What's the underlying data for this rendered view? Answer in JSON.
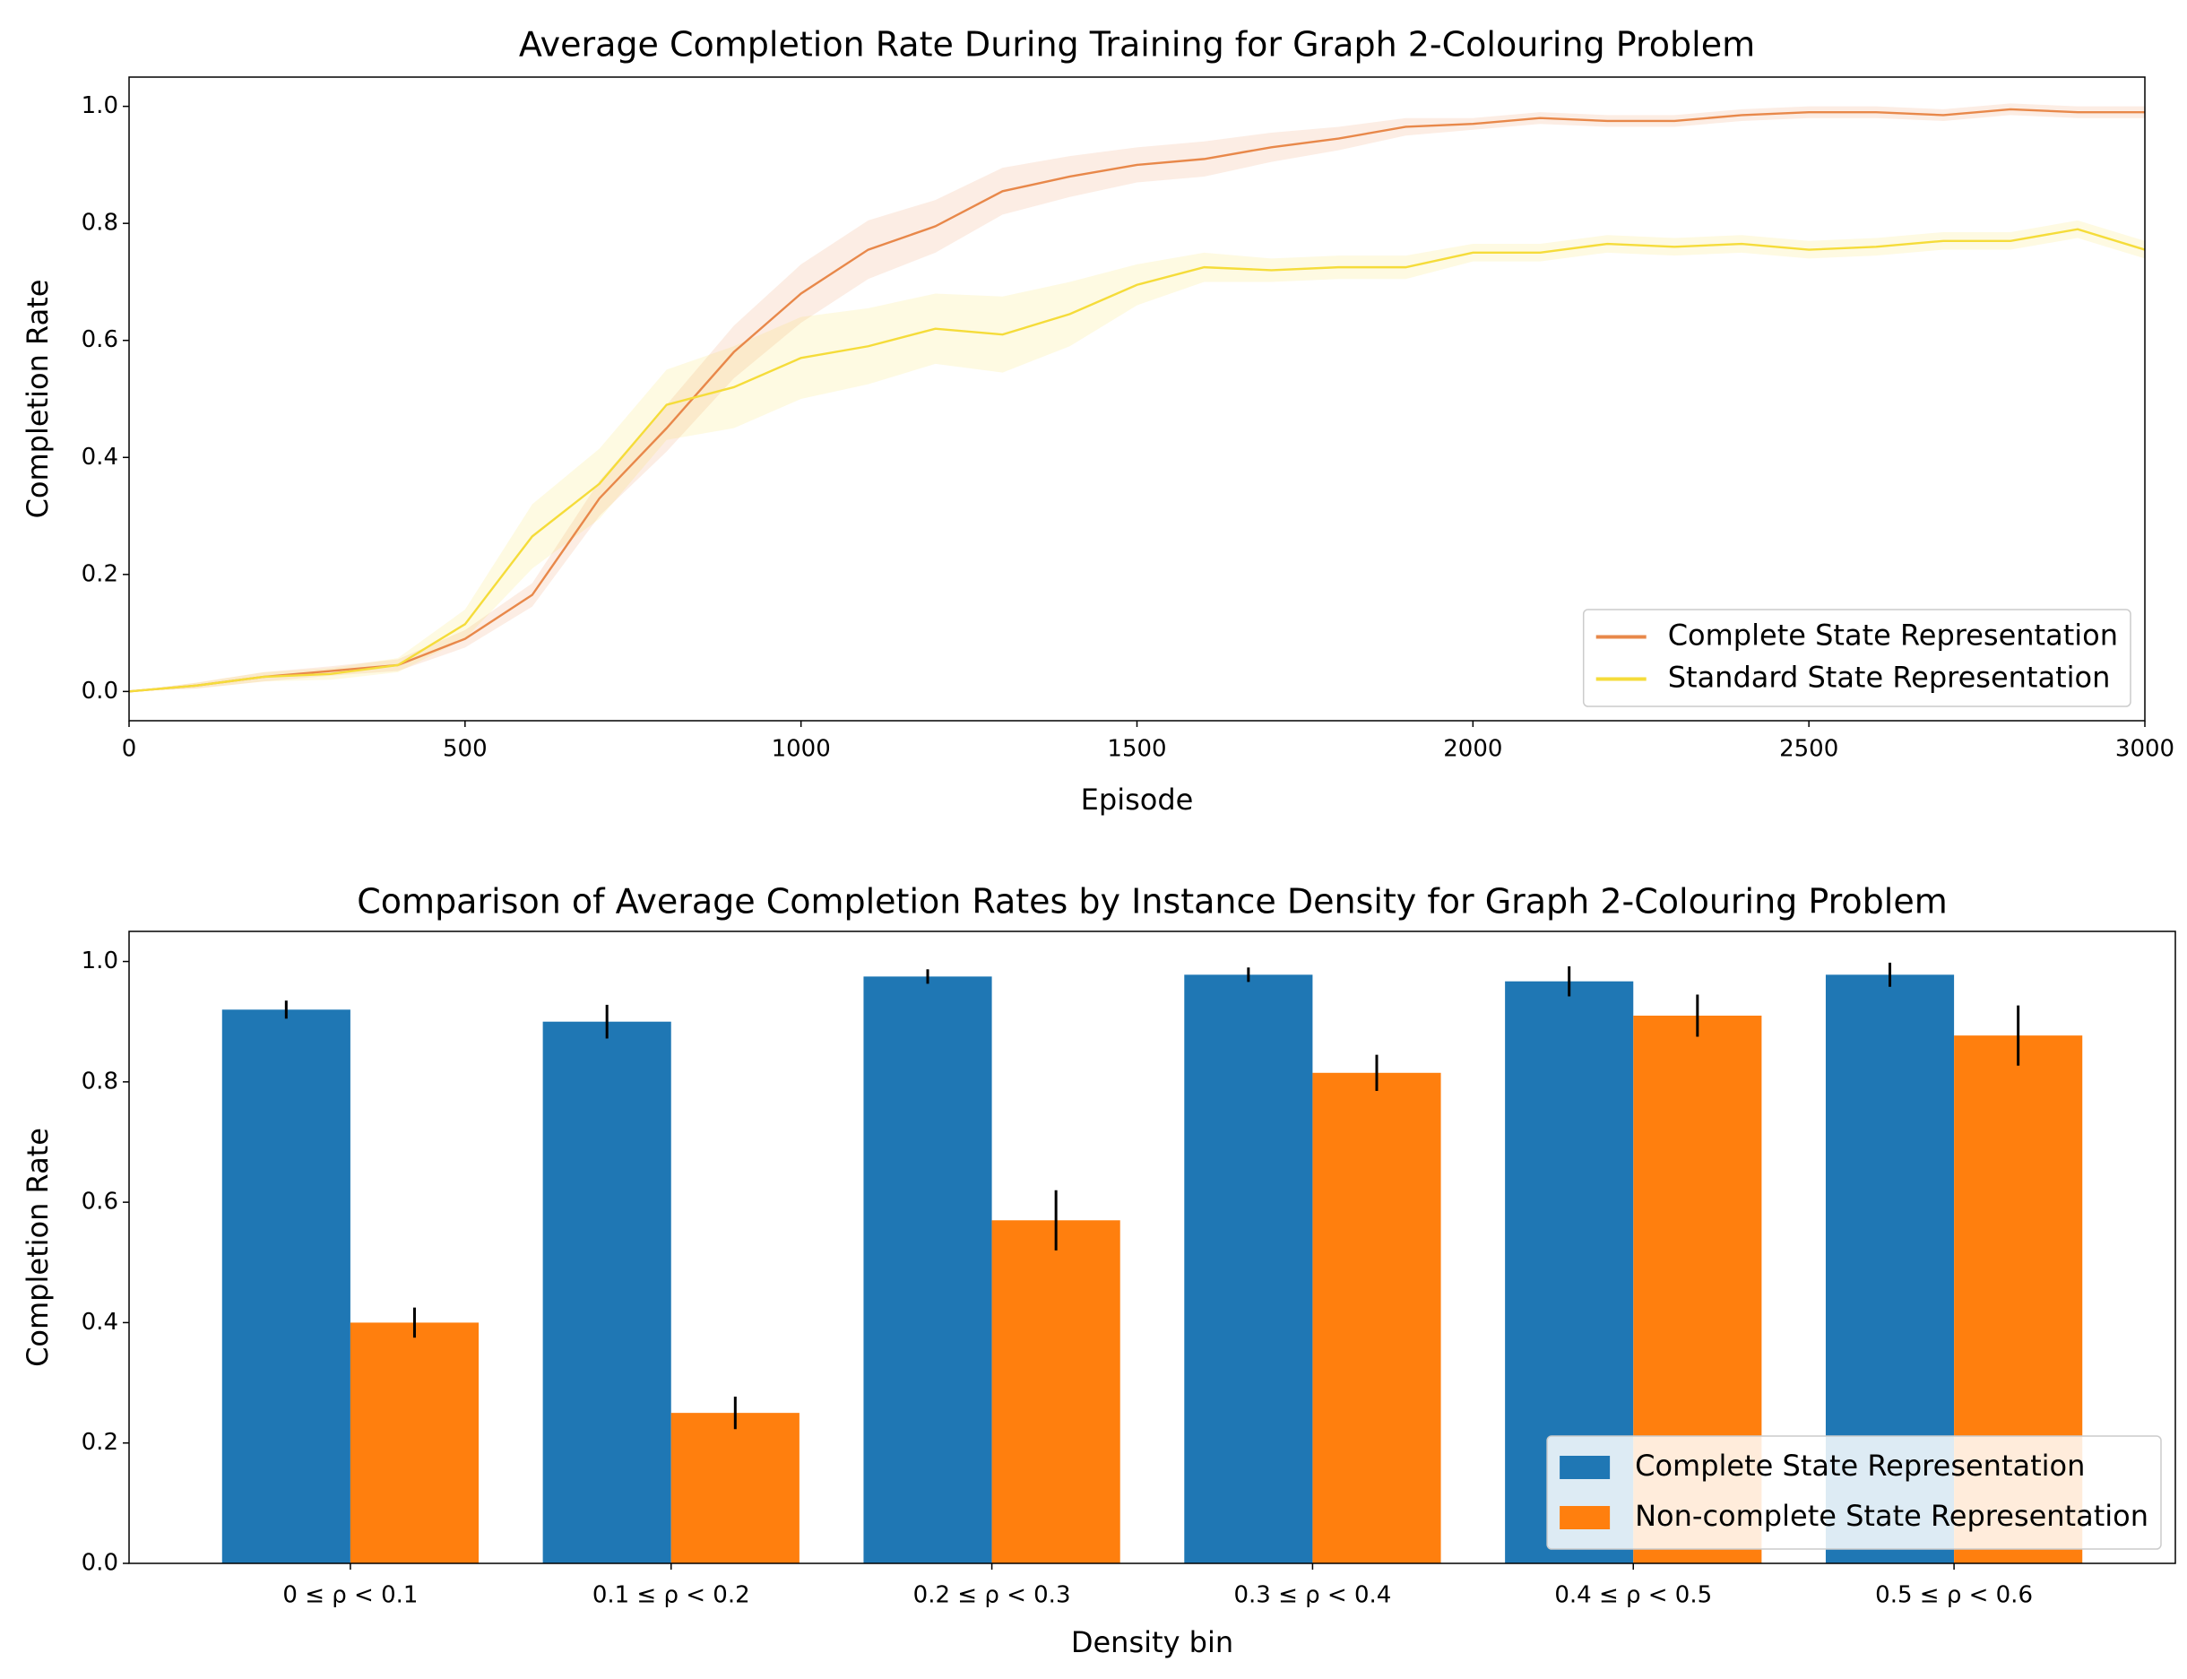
{
  "chart_data": [
    {
      "type": "line",
      "title": "Average Completion Rate During Training for Graph 2-Colouring Problem",
      "xlabel": "Episode",
      "ylabel": "Completion Rate",
      "x": [
        0,
        100,
        200,
        300,
        400,
        500,
        600,
        700,
        800,
        900,
        1000,
        1100,
        1200,
        1300,
        1400,
        1500,
        1600,
        1700,
        1800,
        1900,
        2000,
        2100,
        2200,
        2300,
        2400,
        2500,
        2600,
        2700,
        2800,
        2900,
        3000
      ],
      "series": [
        {
          "name": "Complete State Representation",
          "color": "#e8884a",
          "values": [
            0,
            0.01,
            0.025,
            0.035,
            0.045,
            0.09,
            0.165,
            0.33,
            0.45,
            0.58,
            0.68,
            0.755,
            0.795,
            0.855,
            0.88,
            0.9,
            0.91,
            0.93,
            0.945,
            0.965,
            0.97,
            0.98,
            0.975,
            0.975,
            0.985,
            0.99,
            0.99,
            0.985,
            0.995,
            0.99,
            0.99
          ],
          "spread": [
            0,
            0.005,
            0.008,
            0.008,
            0.01,
            0.015,
            0.02,
            0.03,
            0.04,
            0.045,
            0.05,
            0.05,
            0.045,
            0.04,
            0.035,
            0.03,
            0.03,
            0.025,
            0.02,
            0.015,
            0.01,
            0.01,
            0.01,
            0.01,
            0.01,
            0.01,
            0.01,
            0.01,
            0.01,
            0.01,
            0.01
          ]
        },
        {
          "name": "Standard State Representation",
          "color": "#f5dc3a",
          "values": [
            0,
            0.01,
            0.025,
            0.03,
            0.045,
            0.115,
            0.265,
            0.355,
            0.49,
            0.52,
            0.57,
            0.59,
            0.62,
            0.61,
            0.645,
            0.695,
            0.725,
            0.72,
            0.725,
            0.725,
            0.75,
            0.75,
            0.765,
            0.76,
            0.765,
            0.755,
            0.76,
            0.77,
            0.77,
            0.79,
            0.755
          ],
          "spread": [
            0,
            0.005,
            0.008,
            0.01,
            0.012,
            0.025,
            0.055,
            0.06,
            0.06,
            0.07,
            0.07,
            0.065,
            0.06,
            0.065,
            0.055,
            0.035,
            0.025,
            0.02,
            0.02,
            0.02,
            0.015,
            0.015,
            0.015,
            0.015,
            0.015,
            0.015,
            0.015,
            0.015,
            0.015,
            0.015,
            0.015
          ]
        }
      ],
      "xlim": [
        0,
        3000
      ],
      "xticks": [
        0,
        500,
        1000,
        1500,
        2000,
        2500,
        3000
      ],
      "ylim": [
        -0.05,
        1.05
      ],
      "yticks": [
        {
          "value": 0,
          "label": "0.0"
        },
        {
          "value": 0.2,
          "label": "0.2"
        },
        {
          "value": 0.4,
          "label": "0.4"
        },
        {
          "value": 0.6,
          "label": "0.6"
        },
        {
          "value": 0.8,
          "label": "0.8"
        },
        {
          "value": 1,
          "label": "1.0"
        }
      ],
      "legend": "lower right"
    },
    {
      "type": "bar",
      "title": "Comparison of Average Completion Rates by Instance Density for Graph 2-Colouring Problem",
      "xlabel": "Density bin",
      "ylabel": "Completion Rate",
      "categories": [
        "0 ≤ ρ < 0.1",
        "0.1 ≤ ρ < 0.2",
        "0.2 ≤ ρ < 0.3",
        "0.3 ≤ ρ < 0.4",
        "0.4 ≤ ρ < 0.5",
        "0.5 ≤ ρ < 0.6"
      ],
      "series": [
        {
          "name": "Complete State Representation",
          "color": "#1f77b4",
          "values": [
            0.92,
            0.9,
            0.975,
            0.978,
            0.967,
            0.978
          ],
          "errors": [
            0.015,
            0.028,
            0.012,
            0.012,
            0.025,
            0.02
          ]
        },
        {
          "name": "Non-complete State Representation",
          "color": "#ff7f0e",
          "values": [
            0.4,
            0.25,
            0.57,
            0.815,
            0.91,
            0.877
          ],
          "errors": [
            0.025,
            0.027,
            0.05,
            0.03,
            0.035,
            0.05
          ]
        }
      ],
      "ylim": [
        0,
        1.05
      ],
      "yticks": [
        {
          "value": 0,
          "label": "0.0"
        },
        {
          "value": 0.2,
          "label": "0.2"
        },
        {
          "value": 0.4,
          "label": "0.4"
        },
        {
          "value": 0.6,
          "label": "0.6"
        },
        {
          "value": 0.8,
          "label": "0.8"
        },
        {
          "value": 1,
          "label": "1.0"
        }
      ],
      "legend": "lower right"
    }
  ]
}
